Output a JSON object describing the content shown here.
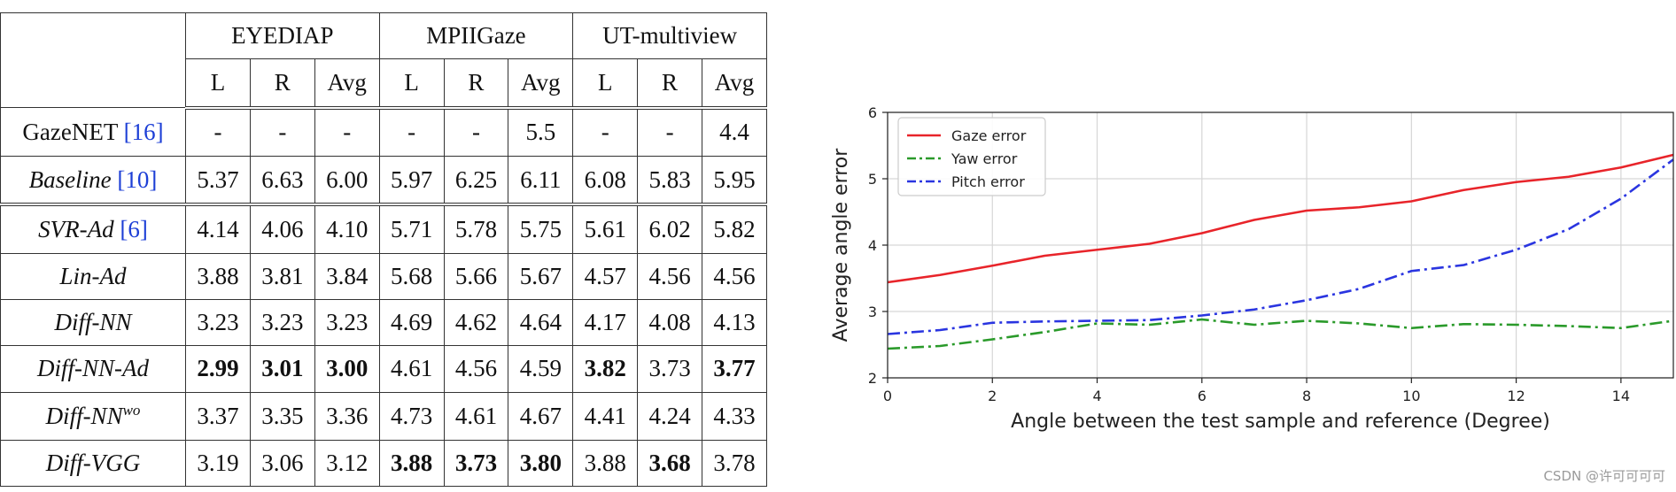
{
  "table": {
    "corner": "",
    "datasets": [
      "EYEDIAP",
      "MPIIGaze",
      "UT-multiview"
    ],
    "subcols": [
      "L",
      "R",
      "Avg",
      "L",
      "R",
      "Avg",
      "L",
      "R",
      "Avg"
    ],
    "rows": [
      {
        "name": "GazeNET",
        "cite": "16",
        "italic": false,
        "values": [
          "-",
          "-",
          "-",
          "-",
          "-",
          "5.5",
          "-",
          "-",
          "4.4"
        ],
        "bold": []
      },
      {
        "name": "Baseline",
        "cite": "10",
        "italic": true,
        "values": [
          "5.37",
          "6.63",
          "6.00",
          "5.97",
          "6.25",
          "6.11",
          "6.08",
          "5.83",
          "5.95"
        ],
        "bold": []
      },
      {
        "name": "SVR-Ad",
        "cite": "6",
        "italic": true,
        "values": [
          "4.14",
          "4.06",
          "4.10",
          "5.71",
          "5.78",
          "5.75",
          "5.61",
          "6.02",
          "5.82"
        ],
        "bold": []
      },
      {
        "name": "Lin-Ad",
        "cite": "",
        "italic": true,
        "values": [
          "3.88",
          "3.81",
          "3.84",
          "5.68",
          "5.66",
          "5.67",
          "4.57",
          "4.56",
          "4.56"
        ],
        "bold": []
      },
      {
        "name": "Diff-NN",
        "cite": "",
        "italic": true,
        "values": [
          "3.23",
          "3.23",
          "3.23",
          "4.69",
          "4.62",
          "4.64",
          "4.17",
          "4.08",
          "4.13"
        ],
        "bold": []
      },
      {
        "name": "Diff-NN-Ad",
        "cite": "",
        "italic": true,
        "values": [
          "2.99",
          "3.01",
          "3.00",
          "4.61",
          "4.56",
          "4.59",
          "3.82",
          "3.73",
          "3.77"
        ],
        "bold": [
          0,
          1,
          2,
          6,
          8
        ]
      },
      {
        "name": "Diff-NN",
        "sup": "wo",
        "cite": "",
        "italic": true,
        "values": [
          "3.37",
          "3.35",
          "3.36",
          "4.73",
          "4.61",
          "4.67",
          "4.41",
          "4.24",
          "4.33"
        ],
        "bold": []
      },
      {
        "name": "Diff-VGG",
        "cite": "",
        "italic": true,
        "values": [
          "3.19",
          "3.06",
          "3.12",
          "3.88",
          "3.73",
          "3.80",
          "3.88",
          "3.68",
          "3.78"
        ],
        "bold": [
          3,
          4,
          5,
          7
        ]
      }
    ]
  },
  "chart_data": {
    "type": "line",
    "title": "",
    "xlabel": "Angle between the test sample and reference (Degree)",
    "ylabel": "Average angle error",
    "xlim": [
      0,
      15
    ],
    "ylim": [
      2,
      6
    ],
    "xticks": [
      0,
      2,
      4,
      6,
      8,
      10,
      12,
      14
    ],
    "yticks": [
      2,
      3,
      4,
      5,
      6
    ],
    "grid": true,
    "legend_position": "top-left",
    "x": [
      0,
      1,
      2,
      3,
      4,
      5,
      6,
      7,
      8,
      9,
      10,
      11,
      12,
      13,
      14,
      15
    ],
    "series": [
      {
        "name": "Gaze error",
        "color": "#e8242a",
        "dash": "solid",
        "values": [
          3.44,
          3.55,
          3.69,
          3.84,
          3.93,
          4.02,
          4.18,
          4.38,
          4.52,
          4.57,
          4.66,
          4.83,
          4.95,
          5.03,
          5.17,
          5.36
        ]
      },
      {
        "name": "Yaw error",
        "color": "#2a9a2a",
        "dash": "dashdot",
        "values": [
          2.44,
          2.48,
          2.58,
          2.69,
          2.82,
          2.8,
          2.88,
          2.8,
          2.86,
          2.82,
          2.75,
          2.81,
          2.8,
          2.78,
          2.75,
          2.86
        ]
      },
      {
        "name": "Pitch error",
        "color": "#2a35e0",
        "dash": "dashdot",
        "values": [
          2.66,
          2.72,
          2.83,
          2.85,
          2.86,
          2.87,
          2.94,
          3.03,
          3.17,
          3.34,
          3.61,
          3.7,
          3.93,
          4.24,
          4.7,
          5.29
        ]
      }
    ]
  },
  "watermark": "CSDN @许可可可可"
}
